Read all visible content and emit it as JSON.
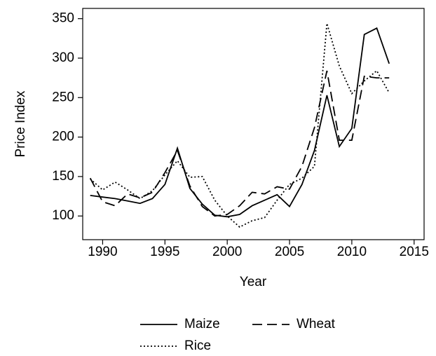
{
  "chart_data": {
    "type": "line",
    "x_label": "Year",
    "y_label": "Price Index",
    "x": [
      1989,
      1990,
      1991,
      1992,
      1993,
      1994,
      1995,
      1996,
      1997,
      1998,
      1999,
      2000,
      2001,
      2002,
      2003,
      2004,
      2005,
      2006,
      2007,
      2008,
      2009,
      2010,
      2011,
      2012,
      2013
    ],
    "series": [
      {
        "name": "Maize",
        "color": "#000000",
        "dash": "solid",
        "values": [
          126,
          124,
          122,
          119,
          116,
          122,
          140,
          186,
          135,
          115,
          101,
          99,
          102,
          113,
          120,
          127,
          112,
          140,
          183,
          253,
          188,
          211,
          330,
          338,
          293
        ]
      },
      {
        "name": "Wheat",
        "color": "#000000",
        "dash": "dashed",
        "values": [
          148,
          118,
          113,
          128,
          123,
          130,
          155,
          183,
          138,
          112,
          100,
          102,
          113,
          130,
          128,
          137,
          134,
          163,
          212,
          284,
          196,
          196,
          277,
          275,
          275
        ]
      },
      {
        "name": "Rice",
        "color": "#000000",
        "dash": "dotted",
        "values": [
          147,
          133,
          143,
          133,
          122,
          132,
          152,
          170,
          149,
          150,
          120,
          100,
          86,
          94,
          98,
          120,
          140,
          148,
          163,
          344,
          290,
          255,
          271,
          284,
          256
        ]
      }
    ],
    "xlim": [
      1988.4,
      2015.8
    ],
    "xticks": [
      1990,
      1995,
      2000,
      2005,
      2010,
      2015
    ],
    "ylim": [
      70,
      363
    ],
    "yticks": [
      100,
      150,
      200,
      250,
      300,
      350
    ],
    "grid": false,
    "legend": "bottom"
  }
}
